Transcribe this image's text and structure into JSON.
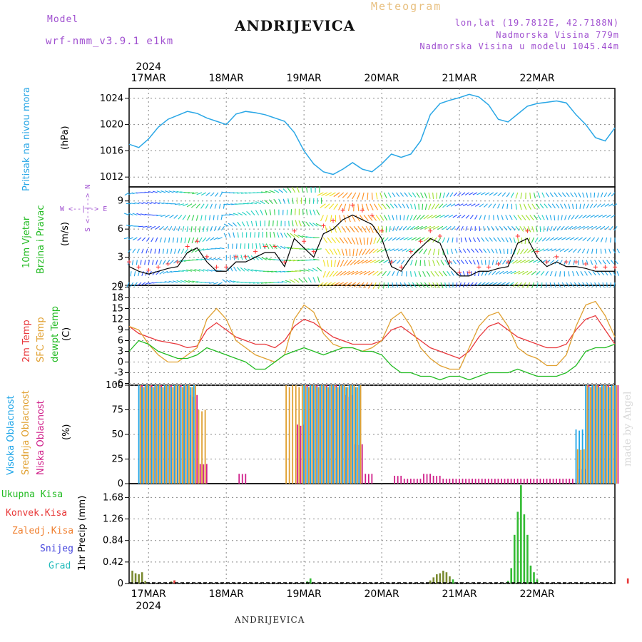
{
  "header": {
    "station": "ANDRIJEVICA",
    "model_label": "Model",
    "model_name": "wrf-nmm_v3.9.1  e1km",
    "title": "Meteogram",
    "lonlat": "lon,lat (19.7812E, 42.7188N)",
    "elevation": "Nadmorska Visina 779m",
    "model_elevation": "Nadmorska Visina u modelu 1045.44m"
  },
  "footer": {
    "station": "ANDRIJEVICA",
    "credit": "made by Angel"
  },
  "time_axis": {
    "year": "2024",
    "days": [
      "17MAR",
      "18MAR",
      "19MAR",
      "20MAR",
      "21MAR",
      "22MAR"
    ]
  },
  "colors": {
    "pressure": "#2aa7e6",
    "temp2m": "#e8383c",
    "sfc": "#e0a030",
    "dewpoint": "#22bb22",
    "high_cloud": "#1ea5e8",
    "mid_cloud": "#e0a030",
    "low_cloud": "#d0208a",
    "total_precip": "#33bb33",
    "conv_precip": "#e83838",
    "frozen": "#f08030",
    "snow": "#4444dd",
    "hail": "#22bbbb",
    "wind_speed": "#000000",
    "gust": "#ff3333"
  },
  "panels": {
    "pressure": {
      "ylabel_name": "Pritisak na nivou mora",
      "ylabel_unit": "(hPa)"
    },
    "wind": {
      "ylabel_1": "10m Vjetar",
      "ylabel_2": "Brzina i Pravac",
      "ylabel_unit": "(m/s)",
      "compass": "W <--|--> E",
      "compass_vert": "S <--|--> N"
    },
    "temp": {
      "l1": "2m Temp",
      "l2": "SFC Temp",
      "l3": "dewpt Temp",
      "ylabel_unit": "(C)"
    },
    "cloud": {
      "l1": "Visoka Oblacnost",
      "l2": "Srednja Oblacnost",
      "l3": "Niska Oblacnost",
      "ylabel_unit": "(%)"
    },
    "precip": {
      "ylabel": "1hr Precip (mm)",
      "legend": [
        "Ukupna Kisa",
        "Konvek.Kisa",
        "Zaledj.Kisa",
        "Snijeg",
        "Grad"
      ]
    }
  },
  "chart_data": [
    {
      "type": "line",
      "title": "",
      "ylabel": "Pritisak na nivou mora (hPa)",
      "ylim": [
        1010.5,
        1025.5
      ],
      "yticks": [
        1012,
        1016,
        1020,
        1024
      ],
      "x_hours": [
        0,
        3,
        6,
        9,
        12,
        15,
        18,
        21,
        24,
        27,
        30,
        33,
        36,
        39,
        42,
        45,
        48,
        51,
        54,
        57,
        60,
        63,
        66,
        69,
        72,
        75,
        78,
        81,
        84,
        87,
        90,
        93,
        96,
        99,
        102,
        105,
        108,
        111,
        114,
        117,
        120,
        123,
        126,
        129,
        132,
        135,
        138,
        141,
        144,
        147,
        150
      ],
      "series": [
        {
          "values": [
            1017,
            1016.5,
            1017.8,
            1019.6,
            1020.8,
            1021.4,
            1022,
            1021.7,
            1021,
            1020.5,
            1020,
            1021.6,
            1022,
            1021.8,
            1021.5,
            1021,
            1020.5,
            1018.8,
            1016,
            1014,
            1012.8,
            1012.4,
            1013.2,
            1014.2,
            1013.2,
            1012.8,
            1014,
            1015.5,
            1015,
            1015.5,
            1017.5,
            1021.5,
            1023.2,
            1023.7,
            1024.1,
            1024.6,
            1024.2,
            1023,
            1020.8,
            1020.4,
            1021.6,
            1022.8,
            1023.2,
            1023.4,
            1023.6,
            1023.3,
            1021.5,
            1020,
            1018,
            1017.5,
            1019.5
          ]
        }
      ]
    },
    {
      "type": "line",
      "title": "",
      "ylabel": "10m Vjetar Brzina i Pravac (m/s)",
      "ylim": [
        0,
        10.5
      ],
      "yticks": [
        0,
        3,
        6,
        9
      ],
      "x_hours": [
        0,
        3,
        6,
        9,
        12,
        15,
        18,
        21,
        24,
        27,
        30,
        33,
        36,
        39,
        42,
        45,
        48,
        51,
        54,
        57,
        60,
        63,
        66,
        69,
        72,
        75,
        78,
        81,
        84,
        87,
        90,
        93,
        96,
        99,
        102,
        105,
        108,
        111,
        114,
        117,
        120,
        123,
        126,
        129,
        132,
        135,
        138,
        141,
        144,
        147,
        150
      ],
      "series": [
        {
          "values": [
            2,
            1.5,
            1.2,
            1.5,
            1.8,
            2,
            3.5,
            4,
            2.5,
            1.5,
            1.5,
            2.5,
            2.5,
            3,
            3.5,
            3.5,
            2,
            5,
            4,
            3,
            5.5,
            6,
            7,
            7.5,
            7,
            6.5,
            5,
            2,
            1.5,
            3,
            4,
            5,
            4.5,
            2,
            1,
            1,
            1.5,
            1.5,
            1.8,
            2,
            4.5,
            5,
            3,
            2,
            2.5,
            2,
            2,
            1.8,
            1.5,
            1.5,
            1.5
          ]
        }
      ]
    },
    {
      "type": "line",
      "title": "",
      "ylabel": "(C)",
      "ylim": [
        -6.5,
        21.5
      ],
      "yticks": [
        -6,
        -3,
        0,
        3,
        6,
        9,
        12,
        15,
        18,
        21
      ],
      "x_hours": [
        0,
        3,
        6,
        9,
        12,
        15,
        18,
        21,
        24,
        27,
        30,
        33,
        36,
        39,
        42,
        45,
        48,
        51,
        54,
        57,
        60,
        63,
        66,
        69,
        72,
        75,
        78,
        81,
        84,
        87,
        90,
        93,
        96,
        99,
        102,
        105,
        108,
        111,
        114,
        117,
        120,
        123,
        126,
        129,
        132,
        135,
        138,
        141,
        144,
        147,
        150
      ],
      "series": [
        {
          "name": "2m Temp",
          "values": [
            10,
            8,
            7,
            6,
            5.5,
            5,
            4,
            4.5,
            9,
            11,
            9,
            7,
            6,
            5,
            5,
            4,
            6,
            10,
            12,
            11,
            9,
            7,
            6,
            5,
            5,
            5,
            6,
            9,
            10,
            8,
            6,
            4,
            3,
            2,
            1,
            3,
            7,
            10,
            11,
            9,
            7,
            6,
            5,
            4,
            4,
            5,
            9,
            12,
            13,
            9,
            5
          ]
        },
        {
          "name": "SFC Temp",
          "values": [
            10,
            9,
            5,
            2,
            0,
            0,
            2,
            4,
            12,
            15,
            12,
            6,
            4,
            2,
            1,
            0,
            2,
            12,
            16,
            14,
            8,
            5,
            4,
            4,
            3,
            4,
            6,
            12,
            14,
            10,
            4,
            1,
            -1,
            -2,
            -2,
            4,
            10,
            13,
            14,
            10,
            4,
            2,
            1,
            -1,
            -1,
            2,
            10,
            16,
            17,
            13,
            7
          ]
        },
        {
          "name": "dewpt Temp",
          "values": [
            3,
            6,
            5,
            3,
            2,
            1,
            1,
            2,
            4,
            3,
            2,
            1,
            0,
            -2,
            -2,
            0,
            2,
            3,
            4,
            3,
            2,
            3,
            4,
            4,
            3,
            3,
            2,
            -1,
            -3,
            -3,
            -4,
            -4,
            -5,
            -4,
            -4,
            -5,
            -4,
            -3,
            -3,
            -3,
            -2,
            -3,
            -4,
            -4,
            -4,
            -3,
            -1,
            3,
            4,
            4,
            5
          ]
        }
      ]
    },
    {
      "type": "bar",
      "title": "",
      "ylabel": "(%)",
      "ylim": [
        0,
        100
      ],
      "yticks": [
        0,
        25,
        50,
        75,
        100
      ],
      "series": [
        {
          "name": "Visoka Oblacnost",
          "values": [
            0,
            100,
            100,
            100,
            100,
            100,
            100,
            0,
            0,
            0,
            0,
            0,
            0,
            0,
            0,
            0,
            0,
            0,
            100,
            100,
            100,
            100,
            100,
            100,
            0,
            0,
            0,
            0,
            0,
            0,
            0,
            0,
            0,
            0,
            0,
            0,
            0,
            0,
            0,
            0,
            0,
            0,
            0,
            0,
            0,
            0,
            55,
            100,
            100,
            100,
            100
          ]
        },
        {
          "name": "Srednja Oblacnost",
          "values": [
            0,
            100,
            100,
            100,
            100,
            100,
            100,
            75,
            0,
            0,
            0,
            0,
            0,
            0,
            0,
            0,
            100,
            100,
            100,
            100,
            100,
            100,
            100,
            100,
            0,
            0,
            0,
            0,
            0,
            0,
            0,
            0,
            0,
            0,
            0,
            0,
            0,
            0,
            0,
            0,
            0,
            0,
            0,
            0,
            0,
            0,
            35,
            100,
            100,
            100,
            100
          ]
        },
        {
          "name": "Niska Oblacnost",
          "values": [
            0,
            100,
            100,
            100,
            100,
            100,
            90,
            20,
            0,
            0,
            0,
            10,
            0,
            0,
            0,
            0,
            0,
            60,
            100,
            100,
            100,
            100,
            90,
            40,
            10,
            0,
            0,
            8,
            5,
            5,
            10,
            8,
            5,
            5,
            5,
            5,
            5,
            5,
            5,
            5,
            5,
            5,
            5,
            5,
            5,
            5,
            15,
            100,
            100,
            100,
            100
          ]
        }
      ]
    },
    {
      "type": "bar",
      "title": "",
      "ylabel": "1hr Precip (mm)",
      "ylim": [
        0,
        1.95
      ],
      "yticks": [
        0,
        0.42,
        0.84,
        1.26,
        1.68
      ],
      "series": [
        {
          "name": "Ukupna Kisa",
          "values": [
            0,
            0.25,
            0.2,
            0.18,
            0.22,
            0.05,
            0.02,
            0,
            0,
            0,
            0,
            0,
            0,
            0.04,
            0.06,
            0,
            0,
            0,
            0,
            0,
            0,
            0,
            0,
            0,
            0,
            0,
            0,
            0,
            0,
            0,
            0,
            0,
            0,
            0,
            0,
            0,
            0,
            0,
            0,
            0,
            0,
            0,
            0,
            0,
            0,
            0,
            0,
            0,
            0,
            0,
            0,
            0,
            0,
            0,
            0,
            0.04,
            0.1,
            0,
            0,
            0,
            0,
            0,
            0,
            0,
            0,
            0,
            0,
            0,
            0,
            0,
            0,
            0,
            0,
            0,
            0,
            0,
            0,
            0,
            0,
            0,
            0,
            0,
            0,
            0,
            0,
            0,
            0,
            0,
            0,
            0,
            0,
            0,
            0,
            0.06,
            0.12,
            0.18,
            0.2,
            0.25,
            0.22,
            0.14,
            0.08,
            0,
            0,
            0,
            0,
            0,
            0,
            0,
            0,
            0,
            0,
            0,
            0,
            0,
            0,
            0,
            0,
            0.05,
            0.3,
            0.95,
            1.4,
            1.92,
            1.35,
            0.95,
            0.35,
            0.22,
            0.08,
            0,
            0,
            0,
            0,
            0,
            0,
            0,
            0,
            0,
            0,
            0,
            0,
            0,
            0,
            0,
            0,
            0,
            0,
            0,
            0,
            0,
            0,
            0,
            0,
            0,
            0,
            0,
            0,
            0,
            0,
            0,
            0,
            0,
            0,
            0.1
          ]
        },
        {
          "name": "Konvek.Kisa",
          "values": [
            0,
            0,
            0,
            0,
            0,
            0,
            0,
            0,
            0,
            0,
            0,
            0,
            0,
            0,
            0.06,
            0,
            0,
            0,
            0,
            0,
            0,
            0,
            0,
            0,
            0,
            0,
            0,
            0,
            0,
            0,
            0,
            0,
            0,
            0,
            0,
            0,
            0,
            0,
            0,
            0,
            0,
            0,
            0,
            0,
            0,
            0,
            0,
            0,
            0,
            0,
            0,
            0,
            0,
            0,
            0,
            0,
            0,
            0,
            0,
            0,
            0,
            0,
            0,
            0,
            0,
            0,
            0,
            0,
            0,
            0,
            0,
            0,
            0,
            0,
            0,
            0,
            0,
            0,
            0,
            0,
            0,
            0,
            0,
            0,
            0,
            0,
            0,
            0,
            0,
            0,
            0,
            0,
            0,
            0,
            0,
            0,
            0,
            0,
            0,
            0,
            0,
            0,
            0,
            0,
            0,
            0,
            0,
            0,
            0,
            0,
            0,
            0,
            0,
            0,
            0,
            0,
            0,
            0,
            0,
            0,
            0,
            0,
            0,
            0,
            0,
            0,
            0,
            0,
            0,
            0,
            0,
            0,
            0,
            0,
            0,
            0,
            0,
            0,
            0,
            0,
            0,
            0,
            0,
            0,
            0,
            0,
            0,
            0,
            0,
            0,
            0,
            0,
            0,
            0,
            0.1
          ]
        }
      ]
    }
  ]
}
